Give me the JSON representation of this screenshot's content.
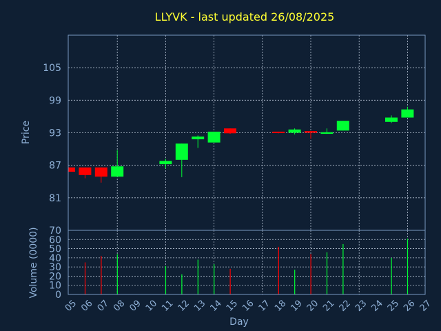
{
  "title": "LLYVK - last updated 26/08/2025",
  "colors": {
    "background": "#0f1f33",
    "up": "#00ff33",
    "down": "#ff0000",
    "text": "#8fb0d6",
    "title": "#ffff33",
    "grid": "#b8c4d4"
  },
  "chart_data": [
    {
      "type": "candlestick",
      "ylabel": "Price",
      "ylim": [
        75,
        111
      ],
      "yticks": [
        "81",
        "87",
        "93",
        "99",
        "105"
      ],
      "grid": true,
      "x_categories": [
        "05",
        "06",
        "07",
        "08",
        "09",
        "10",
        "11",
        "12",
        "13",
        "14",
        "15",
        "16",
        "17",
        "18",
        "19",
        "20",
        "21",
        "22",
        "23",
        "24",
        "25",
        "26",
        "27"
      ],
      "candles": [
        {
          "day": "05",
          "open": 86.6,
          "high": 86.6,
          "low": 85.8,
          "close": 85.8
        },
        {
          "day": "06",
          "open": 86.6,
          "high": 86.6,
          "low": 84.6,
          "close": 85.2
        },
        {
          "day": "07",
          "open": 86.6,
          "high": 86.6,
          "low": 83.8,
          "close": 84.9
        },
        {
          "day": "08",
          "open": 84.9,
          "high": 89.8,
          "low": 84.9,
          "close": 86.8
        },
        {
          "day": "11",
          "open": 87.2,
          "high": 88.2,
          "low": 86.4,
          "close": 87.8
        },
        {
          "day": "12",
          "open": 88.0,
          "high": 91.0,
          "low": 84.8,
          "close": 91.0
        },
        {
          "day": "13",
          "open": 91.8,
          "high": 92.5,
          "low": 90.2,
          "close": 92.3
        },
        {
          "day": "14",
          "open": 91.2,
          "high": 93.2,
          "low": 91.2,
          "close": 93.2
        },
        {
          "day": "15",
          "open": 93.8,
          "high": 93.8,
          "low": 92.8,
          "close": 92.9
        },
        {
          "day": "18",
          "open": 93.2,
          "high": 93.2,
          "low": 92.9,
          "close": 93.0
        },
        {
          "day": "19",
          "open": 93.0,
          "high": 93.8,
          "low": 92.7,
          "close": 93.6
        },
        {
          "day": "20",
          "open": 93.3,
          "high": 93.3,
          "low": 91.9,
          "close": 93.0
        },
        {
          "day": "21",
          "open": 92.8,
          "high": 93.8,
          "low": 92.8,
          "close": 93.1
        },
        {
          "day": "22",
          "open": 93.4,
          "high": 95.2,
          "low": 93.4,
          "close": 95.2
        },
        {
          "day": "25",
          "open": 95.0,
          "high": 96.2,
          "low": 94.8,
          "close": 95.8
        },
        {
          "day": "26",
          "open": 95.8,
          "high": 97.8,
          "low": 95.8,
          "close": 97.3
        }
      ]
    },
    {
      "type": "bar",
      "ylabel": "Volume (0000)",
      "xlabel": "Day",
      "ylim": [
        0,
        70
      ],
      "yticks": [
        "0",
        "10",
        "20",
        "30",
        "40",
        "50",
        "60",
        "70"
      ],
      "grid": true,
      "x_categories": [
        "05",
        "06",
        "07",
        "08",
        "09",
        "10",
        "11",
        "12",
        "13",
        "14",
        "15",
        "16",
        "17",
        "18",
        "19",
        "20",
        "21",
        "22",
        "23",
        "24",
        "25",
        "26",
        "27"
      ],
      "bars": [
        {
          "day": "06",
          "value": 35,
          "direction": "down"
        },
        {
          "day": "07",
          "value": 42,
          "direction": "down"
        },
        {
          "day": "08",
          "value": 44,
          "direction": "up"
        },
        {
          "day": "11",
          "value": 31,
          "direction": "up"
        },
        {
          "day": "12",
          "value": 22,
          "direction": "up"
        },
        {
          "day": "13",
          "value": 38,
          "direction": "up"
        },
        {
          "day": "14",
          "value": 33,
          "direction": "up"
        },
        {
          "day": "15",
          "value": 28,
          "direction": "down"
        },
        {
          "day": "18",
          "value": 52,
          "direction": "down"
        },
        {
          "day": "19",
          "value": 27,
          "direction": "up"
        },
        {
          "day": "20",
          "value": 44,
          "direction": "down"
        },
        {
          "day": "21",
          "value": 46,
          "direction": "up"
        },
        {
          "day": "22",
          "value": 55,
          "direction": "up"
        },
        {
          "day": "25",
          "value": 40,
          "direction": "up"
        },
        {
          "day": "26",
          "value": 61,
          "direction": "up"
        }
      ]
    }
  ]
}
